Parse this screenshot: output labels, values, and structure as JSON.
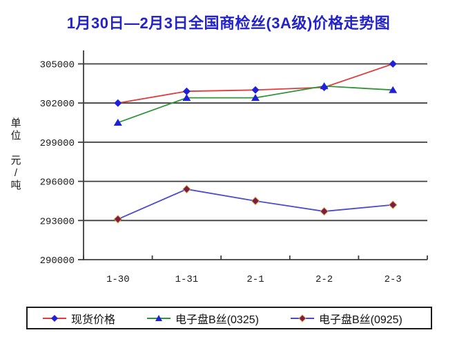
{
  "y_axis_unit": "单\n位\n\n元\n/\n吨",
  "colors": {
    "title": "#2323c8",
    "axis": "#3d3d3d",
    "tick_label": "#1a1a1a",
    "legend_border": "#1a1a1a"
  },
  "chart_data": {
    "type": "line",
    "title": "1月30日—2月3日全国商检丝(3A级)价格走势图",
    "ylabel": "单位 元/吨",
    "categories": [
      "1-30",
      "1-31",
      "2-1",
      "2-2",
      "2-3"
    ],
    "series": [
      {
        "name": "现货价格",
        "values": [
          302000,
          302900,
          303000,
          303200,
          305000
        ],
        "line_color": "#e03c3c",
        "marker": "diamond",
        "marker_color": "#2020d8",
        "marker_outline": "none"
      },
      {
        "name": "电子盘B丝(0325)",
        "values": [
          300500,
          302400,
          302400,
          303300,
          303000
        ],
        "line_color": "#2e9437",
        "marker": "triangle",
        "marker_color": "#2020d8",
        "marker_outline": "none"
      },
      {
        "name": "电子盘B丝(0925)",
        "values": [
          293100,
          295400,
          294500,
          293700,
          294200
        ],
        "line_color": "#4a4acc",
        "marker": "diamond",
        "marker_color": "#7d1a46",
        "marker_outline": "#d8a040"
      }
    ],
    "ylim": [
      290000,
      305000
    ],
    "yticks": [
      290000,
      293000,
      296000,
      299000,
      302000,
      305000
    ],
    "grid": true,
    "legend_position": "bottom"
  }
}
